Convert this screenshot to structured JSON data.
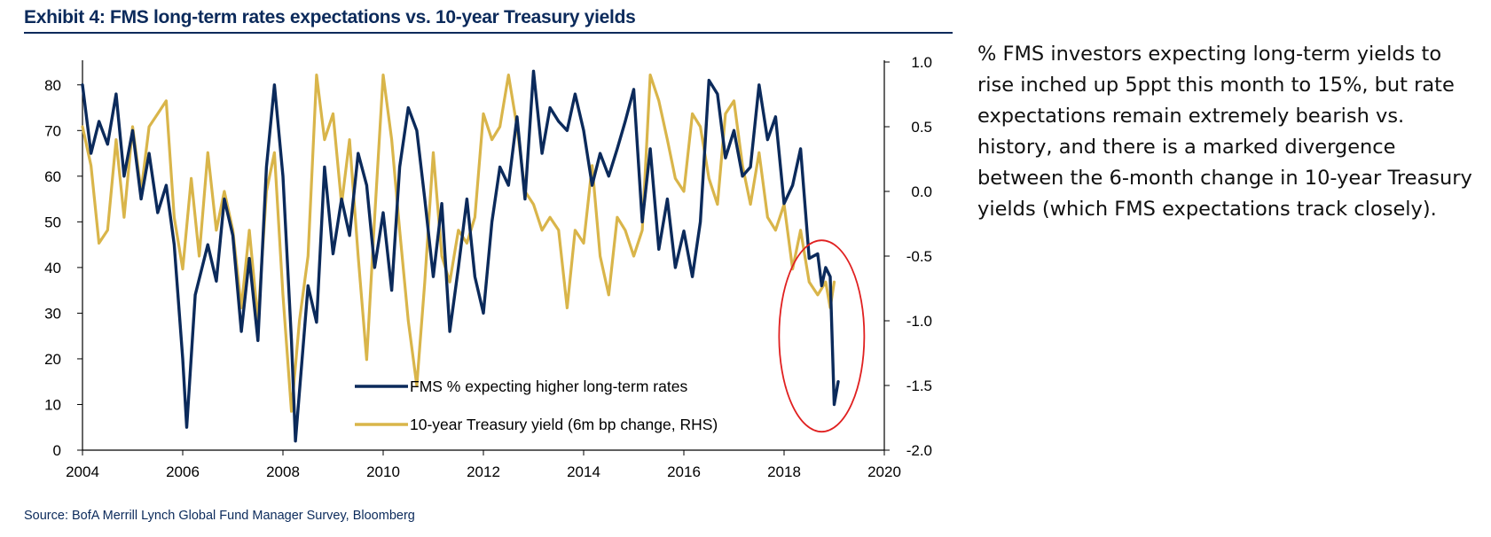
{
  "header": {
    "title": "Exhibit 4: FMS long-term rates expectations vs. 10-year Treasury yields"
  },
  "commentary": {
    "text": "% FMS investors expecting long-term yields to rise inched up 5ppt this month to 15%, but rate expectations remain extremely bearish vs. history, and there is a marked divergence between the 6-month change in 10-year Treasury yields (which FMS expectations track closely)."
  },
  "footer": {
    "source": "Source: BofA Merrill Lynch Global Fund Manager Survey, Bloomberg"
  },
  "colors": {
    "fms": "#0b2a5b",
    "treasury": "#d9b54a",
    "highlight": "#e02020",
    "axis": "#000000",
    "title": "#0b2a5b"
  },
  "chart_data": {
    "type": "line",
    "title": "Exhibit 4: FMS long-term rates expectations vs. 10-year Treasury yields",
    "x_ticks": [
      "2004",
      "2006",
      "2008",
      "2010",
      "2012",
      "2014",
      "2016",
      "2018",
      "2020"
    ],
    "xlim": [
      2004,
      2020
    ],
    "y_left": {
      "ticks": [
        "0",
        "10",
        "20",
        "30",
        "40",
        "50",
        "60",
        "70",
        "80"
      ],
      "ylim": [
        0,
        85
      ]
    },
    "y_right": {
      "ticks": [
        "-2.0",
        "-1.5",
        "-1.0",
        "-0.5",
        "0.0",
        "0.5",
        "1.0"
      ],
      "ylim": [
        -2.0,
        1.0
      ]
    },
    "legend_position": "bottom-center",
    "annotation": "red ellipse highlighting late 2018 drop",
    "series": [
      {
        "name": "FMS % expecting higher long-term rates",
        "axis": "left",
        "x": [
          2004.0,
          2004.17,
          2004.33,
          2004.5,
          2004.67,
          2004.83,
          2005.0,
          2005.17,
          2005.33,
          2005.5,
          2005.67,
          2005.83,
          2006.0,
          2006.08,
          2006.25,
          2006.5,
          2006.67,
          2006.83,
          2007.0,
          2007.17,
          2007.33,
          2007.5,
          2007.67,
          2007.83,
          2008.0,
          2008.17,
          2008.25,
          2008.5,
          2008.67,
          2008.83,
          2009.0,
          2009.17,
          2009.33,
          2009.5,
          2009.67,
          2009.83,
          2010.0,
          2010.17,
          2010.33,
          2010.5,
          2010.67,
          2010.83,
          2011.0,
          2011.17,
          2011.33,
          2011.5,
          2011.67,
          2011.83,
          2012.0,
          2012.17,
          2012.33,
          2012.5,
          2012.67,
          2012.83,
          2013.0,
          2013.17,
          2013.33,
          2013.5,
          2013.67,
          2013.83,
          2014.0,
          2014.17,
          2014.33,
          2014.5,
          2014.67,
          2014.83,
          2015.0,
          2015.17,
          2015.33,
          2015.5,
          2015.67,
          2015.83,
          2016.0,
          2016.17,
          2016.33,
          2016.5,
          2016.67,
          2016.83,
          2017.0,
          2017.17,
          2017.33,
          2017.5,
          2017.67,
          2017.83,
          2018.0,
          2018.17,
          2018.33,
          2018.5,
          2018.67,
          2018.75,
          2018.83,
          2018.92,
          2019.0,
          2019.08
        ],
        "values": [
          80,
          65,
          72,
          67,
          78,
          60,
          70,
          55,
          65,
          52,
          58,
          45,
          20,
          5,
          34,
          45,
          37,
          55,
          47,
          26,
          42,
          24,
          62,
          80,
          60,
          24,
          2,
          36,
          28,
          62,
          43,
          55,
          47,
          65,
          58,
          40,
          52,
          35,
          62,
          75,
          70,
          55,
          38,
          54,
          26,
          40,
          55,
          38,
          30,
          50,
          62,
          58,
          73,
          55,
          83,
          65,
          75,
          72,
          70,
          78,
          70,
          58,
          65,
          60,
          66,
          72,
          79,
          50,
          66,
          44,
          55,
          40,
          48,
          38,
          50,
          81,
          78,
          64,
          70,
          60,
          62,
          80,
          68,
          73,
          54,
          58,
          66,
          42,
          43,
          36,
          40,
          38,
          10,
          15
        ]
      },
      {
        "name": "10-year Treasury yield (6m bp change, RHS)",
        "axis": "right",
        "x": [
          2004.0,
          2004.17,
          2004.33,
          2004.5,
          2004.67,
          2004.83,
          2005.0,
          2005.17,
          2005.33,
          2005.5,
          2005.67,
          2005.83,
          2006.0,
          2006.17,
          2006.33,
          2006.5,
          2006.67,
          2006.83,
          2007.0,
          2007.17,
          2007.33,
          2007.5,
          2007.67,
          2007.83,
          2008.0,
          2008.17,
          2008.33,
          2008.5,
          2008.67,
          2008.83,
          2009.0,
          2009.17,
          2009.33,
          2009.5,
          2009.67,
          2009.83,
          2010.0,
          2010.17,
          2010.33,
          2010.5,
          2010.67,
          2010.83,
          2011.0,
          2011.17,
          2011.33,
          2011.5,
          2011.67,
          2011.83,
          2012.0,
          2012.17,
          2012.33,
          2012.5,
          2012.67,
          2012.83,
          2013.0,
          2013.17,
          2013.33,
          2013.5,
          2013.67,
          2013.83,
          2014.0,
          2014.17,
          2014.33,
          2014.5,
          2014.67,
          2014.83,
          2015.0,
          2015.17,
          2015.33,
          2015.5,
          2015.67,
          2015.83,
          2016.0,
          2016.17,
          2016.33,
          2016.5,
          2016.67,
          2016.83,
          2017.0,
          2017.17,
          2017.33,
          2017.5,
          2017.67,
          2017.83,
          2018.0,
          2018.17,
          2018.33,
          2018.5,
          2018.67,
          2018.83,
          2018.92,
          2019.0
        ],
        "values": [
          0.5,
          0.2,
          -0.4,
          -0.3,
          0.4,
          -0.2,
          0.5,
          0.0,
          0.5,
          0.6,
          0.7,
          -0.2,
          -0.6,
          0.1,
          -0.5,
          0.3,
          -0.3,
          0.0,
          -0.3,
          -0.9,
          -0.3,
          -1.0,
          0.0,
          0.3,
          -0.8,
          -1.7,
          -1.0,
          -0.5,
          0.9,
          0.4,
          0.6,
          -0.1,
          0.4,
          -0.5,
          -1.3,
          -0.2,
          0.9,
          0.4,
          -0.3,
          -1.0,
          -1.5,
          -0.7,
          0.3,
          -0.5,
          -0.7,
          -0.3,
          -0.4,
          -0.2,
          0.6,
          0.4,
          0.5,
          0.9,
          0.5,
          0.0,
          -0.1,
          -0.3,
          -0.2,
          -0.3,
          -0.9,
          -0.3,
          -0.4,
          0.2,
          -0.5,
          -0.8,
          -0.2,
          -0.3,
          -0.5,
          -0.3,
          0.9,
          0.7,
          0.4,
          0.1,
          0.0,
          0.6,
          0.5,
          0.1,
          -0.1,
          0.6,
          0.7,
          0.2,
          -0.1,
          0.3,
          -0.2,
          -0.3,
          -0.1,
          -0.6,
          -0.3,
          -0.7,
          -0.8,
          -0.7,
          -0.9,
          -0.7
        ]
      }
    ]
  }
}
